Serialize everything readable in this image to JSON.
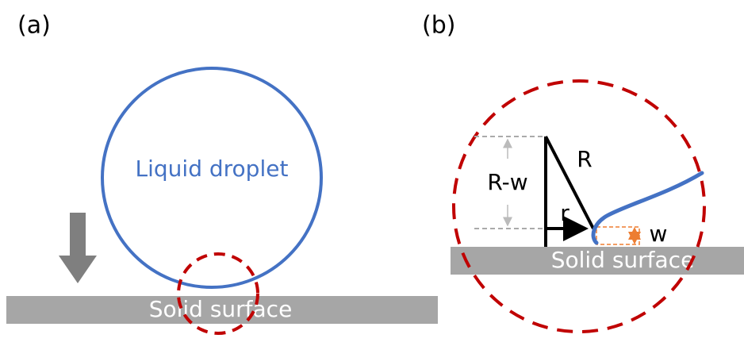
{
  "panels": [
    {
      "label": "(a)",
      "droplet_label": "Liquid droplet",
      "surface_label": "Solid surface"
    },
    {
      "label": "(b)",
      "surface_label": "Solid surface",
      "radius_label": "R",
      "height_label": "R-w",
      "contact_label": "r",
      "gap_label": "w"
    }
  ]
}
